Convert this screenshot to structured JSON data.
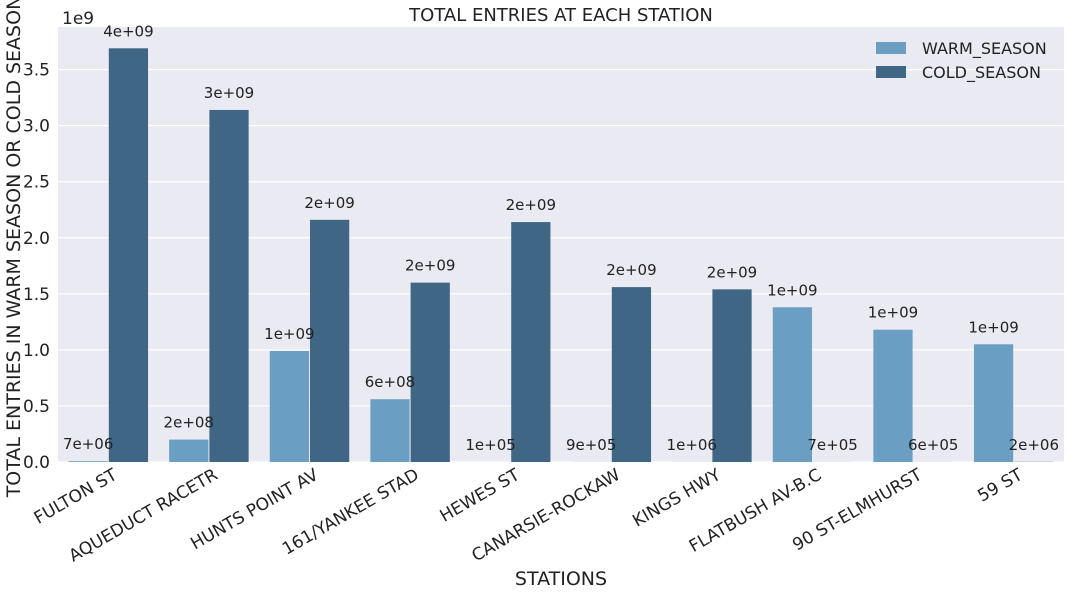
{
  "chart_data": {
    "type": "bar",
    "title": "TOTAL ENTRIES AT EACH STATION",
    "xlabel": "STATIONS",
    "ylabel": "TOTAL ENTRIES IN WARM SEASON OR COLD SEASON",
    "y_offset_label": "1e9",
    "ylim": [
      0,
      3.88
    ],
    "y_unit_multiplier": 1000000000,
    "yticks": [
      0.0,
      0.5,
      1.0,
      1.5,
      2.0,
      2.5,
      3.0,
      3.5
    ],
    "ytick_labels": [
      "0.0",
      "0.5",
      "1.0",
      "1.5",
      "2.0",
      "2.5",
      "3.0",
      "3.5"
    ],
    "grid": true,
    "legend_position": "top-right",
    "categories": [
      "FULTON ST",
      "AQUEDUCT RACETR",
      "HUNTS POINT AV",
      "161/YANKEE STAD",
      "HEWES ST",
      "CANARSIE-ROCKAW",
      "KINGS HWY",
      "FLATBUSH AV-B.C",
      "90 ST-ELMHURST",
      "59 ST"
    ],
    "series": [
      {
        "name": "WARM_SEASON",
        "color": "#6a9ec3",
        "values": [
          0.007,
          0.2,
          0.99,
          0.56,
          0.0001,
          0.0009,
          0.001,
          1.38,
          1.18,
          1.05
        ],
        "labels": [
          "7e+06",
          "2e+08",
          "1e+09",
          "6e+08",
          "1e+05",
          "9e+05",
          "1e+06",
          "1e+09",
          "1e+09",
          "1e+09"
        ]
      },
      {
        "name": "COLD_SEASON",
        "color": "#3f6785",
        "values": [
          3.69,
          3.14,
          2.16,
          1.6,
          2.14,
          1.56,
          1.54,
          0.0007,
          0.0006,
          0.002
        ],
        "labels": [
          "4e+09",
          "3e+09",
          "2e+09",
          "2e+09",
          "2e+09",
          "2e+09",
          "2e+09",
          "7e+05",
          "6e+05",
          "2e+06"
        ]
      }
    ]
  }
}
